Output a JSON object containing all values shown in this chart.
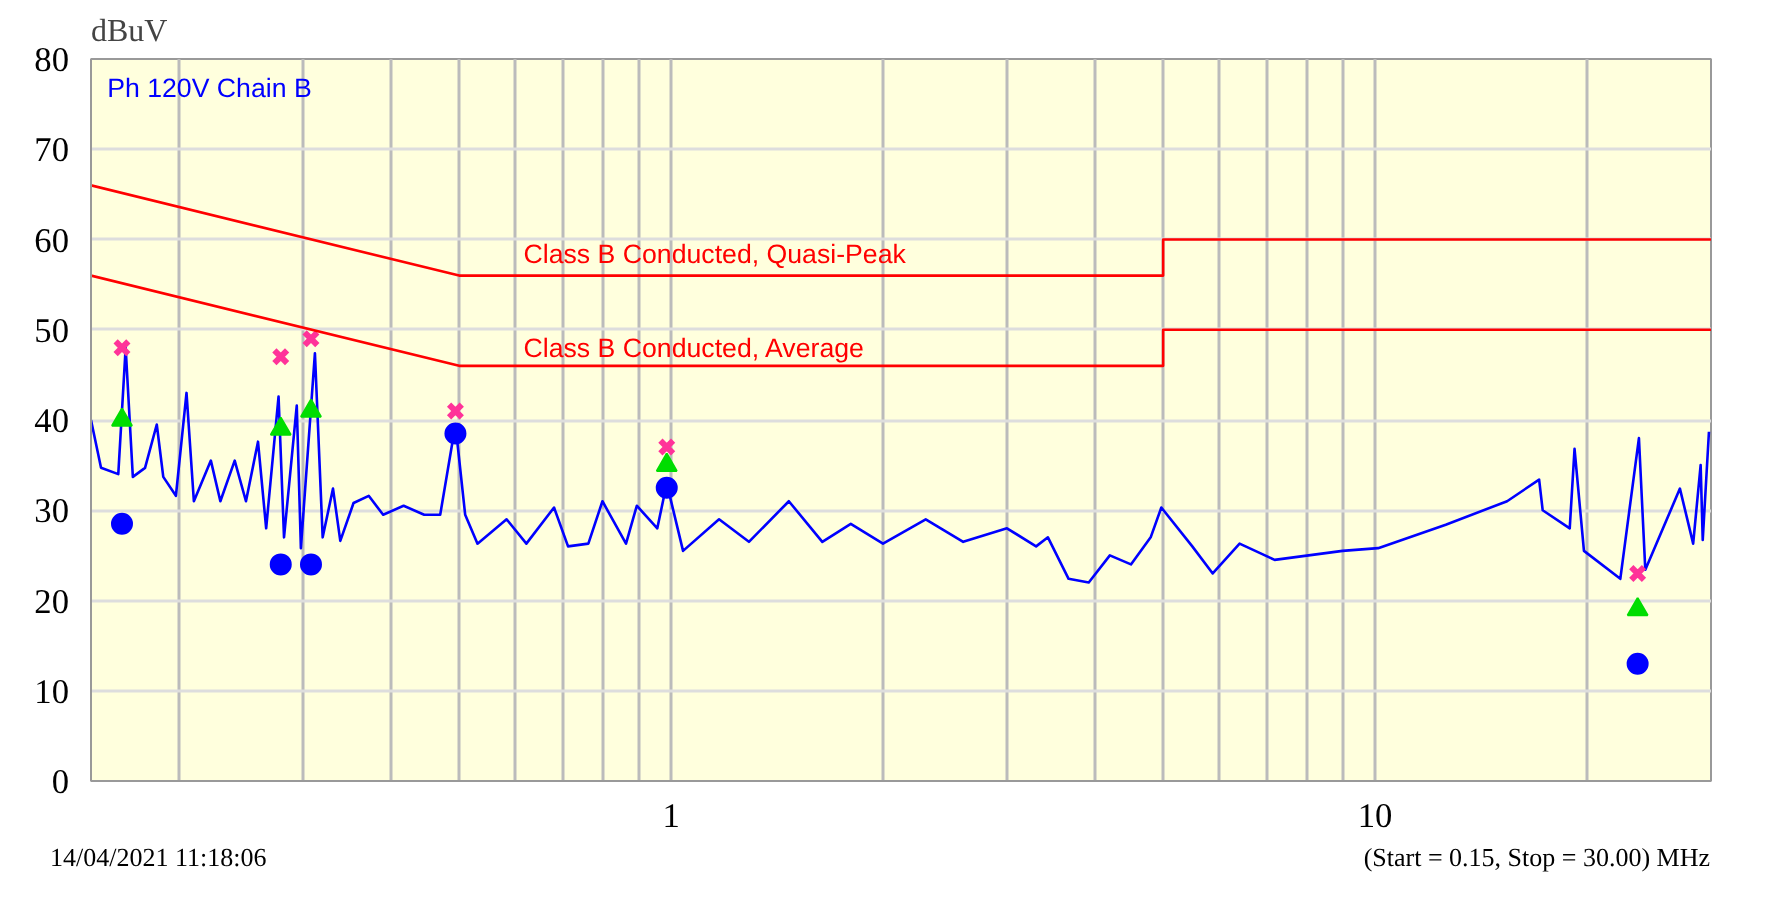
{
  "chart_data": {
    "type": "line",
    "ylabel": "dBuV",
    "log": "x",
    "xlim": [
      0.15,
      30
    ],
    "ylim": [
      0,
      80
    ],
    "xticks": [
      {
        "value": 0.2,
        "label": null
      },
      {
        "value": 0.3,
        "label": null
      },
      {
        "value": 0.4,
        "label": null
      },
      {
        "value": 0.5,
        "label": null
      },
      {
        "value": 0.6,
        "label": null
      },
      {
        "value": 0.7,
        "label": null
      },
      {
        "value": 0.8,
        "label": null
      },
      {
        "value": 0.9,
        "label": null
      },
      1,
      {
        "value": 2,
        "label": null
      },
      {
        "value": 3,
        "label": null
      },
      {
        "value": 4,
        "label": null
      },
      {
        "value": 5,
        "label": null
      },
      {
        "value": 6,
        "label": null
      },
      {
        "value": 7,
        "label": null
      },
      {
        "value": 8,
        "label": null
      },
      {
        "value": 9,
        "label": null
      },
      10,
      {
        "value": 20,
        "label": null
      }
    ],
    "yticks": [
      0,
      10,
      20,
      30,
      40,
      50,
      60,
      70,
      80
    ],
    "grid": true,
    "series": [
      {
        "color": "#0000ff",
        "line_style": "solid",
        "x": [
          0.15,
          0.155,
          0.164,
          0.168,
          0.172,
          0.179,
          0.186,
          0.19,
          0.198,
          0.205,
          0.21,
          0.222,
          0.229,
          0.24,
          0.249,
          0.259,
          0.266,
          0.277,
          0.282,
          0.294,
          0.298,
          0.312,
          0.32,
          0.331,
          0.339,
          0.354,
          0.372,
          0.39,
          0.417,
          0.446,
          0.47,
          0.494,
          0.51,
          0.531,
          0.584,
          0.623,
          0.682,
          0.714,
          0.763,
          0.799,
          0.863,
          0.894,
          0.956,
          0.986,
          1.04,
          1.17,
          1.29,
          1.47,
          1.64,
          1.8,
          2.0,
          2.3,
          2.6,
          3.0,
          3.3,
          3.43,
          3.67,
          3.92,
          4.2,
          4.5,
          4.8,
          4.97,
          5.5,
          5.88,
          6.42,
          7.2,
          8.99,
          10.1,
          12.6,
          15.4,
          17.1,
          17.3,
          18.9,
          19.2,
          19.8,
          22.3,
          23.7,
          24.2,
          27.1,
          28.3,
          29.0,
          29.2,
          29.8
        ],
        "values": [
          40,
          34.7,
          34,
          48,
          33.7,
          34.7,
          39.5,
          33.7,
          31.6,
          43,
          31,
          35.5,
          31,
          35.5,
          31,
          37.6,
          28,
          42.6,
          27,
          41.6,
          25.8,
          47.4,
          27,
          32.4,
          26.6,
          30.8,
          31.6,
          29.5,
          30.5,
          29.5,
          29.5,
          39.5,
          29.5,
          26.3,
          29,
          26.3,
          30.3,
          26,
          26.3,
          31,
          26.3,
          30.5,
          28,
          33,
          25.5,
          29,
          26.5,
          31,
          26.5,
          28.5,
          26.3,
          29,
          26.5,
          28,
          26,
          27,
          22.4,
          22,
          25,
          24,
          27,
          30.3,
          26,
          23,
          26.3,
          24.5,
          25.5,
          25.8,
          28.4,
          31,
          33.4,
          30,
          28,
          36.8,
          25.5,
          22.4,
          38,
          23.4,
          32.4,
          26.3,
          35,
          26.7,
          38.7
        ]
      },
      {
        "color": "#ff3399",
        "type": "scatter",
        "marker": "cross",
        "x": [
          0.166,
          0.279,
          0.308,
          0.494,
          0.986,
          23.6
        ],
        "values": [
          48,
          47,
          49,
          41,
          37,
          23
        ]
      },
      {
        "color": "#00dd00",
        "type": "scatter",
        "marker": "triangle",
        "x": [
          0.166,
          0.279,
          0.308,
          0.494,
          0.986,
          23.6
        ],
        "values": [
          40,
          39,
          41,
          null,
          35,
          19
        ]
      },
      {
        "color": "#0000ff",
        "type": "scatter",
        "marker": "circle",
        "x": [
          0.166,
          0.279,
          0.308,
          0.494,
          0.986,
          23.6
        ],
        "values": [
          28.5,
          24,
          24,
          38.5,
          32.5,
          13
        ]
      },
      {
        "color": "#ff0000",
        "line_style": "solid",
        "x": [
          0.15,
          0.5,
          5,
          5,
          30
        ],
        "values": [
          66,
          56,
          56,
          60,
          60
        ]
      },
      {
        "color": "#ff0000",
        "line_style": "solid",
        "x": [
          0.15,
          0.5,
          5,
          5,
          30
        ],
        "values": [
          56,
          46,
          46,
          50,
          50
        ]
      }
    ],
    "annotations": [
      "Ph 120V  Chain B",
      "Class B Conducted, Quasi-Peak",
      "Class B Conducted, Average",
      "14/04/2021 11:18:06",
      "(Start = 0.15, Stop = 30.00) MHz"
    ]
  }
}
